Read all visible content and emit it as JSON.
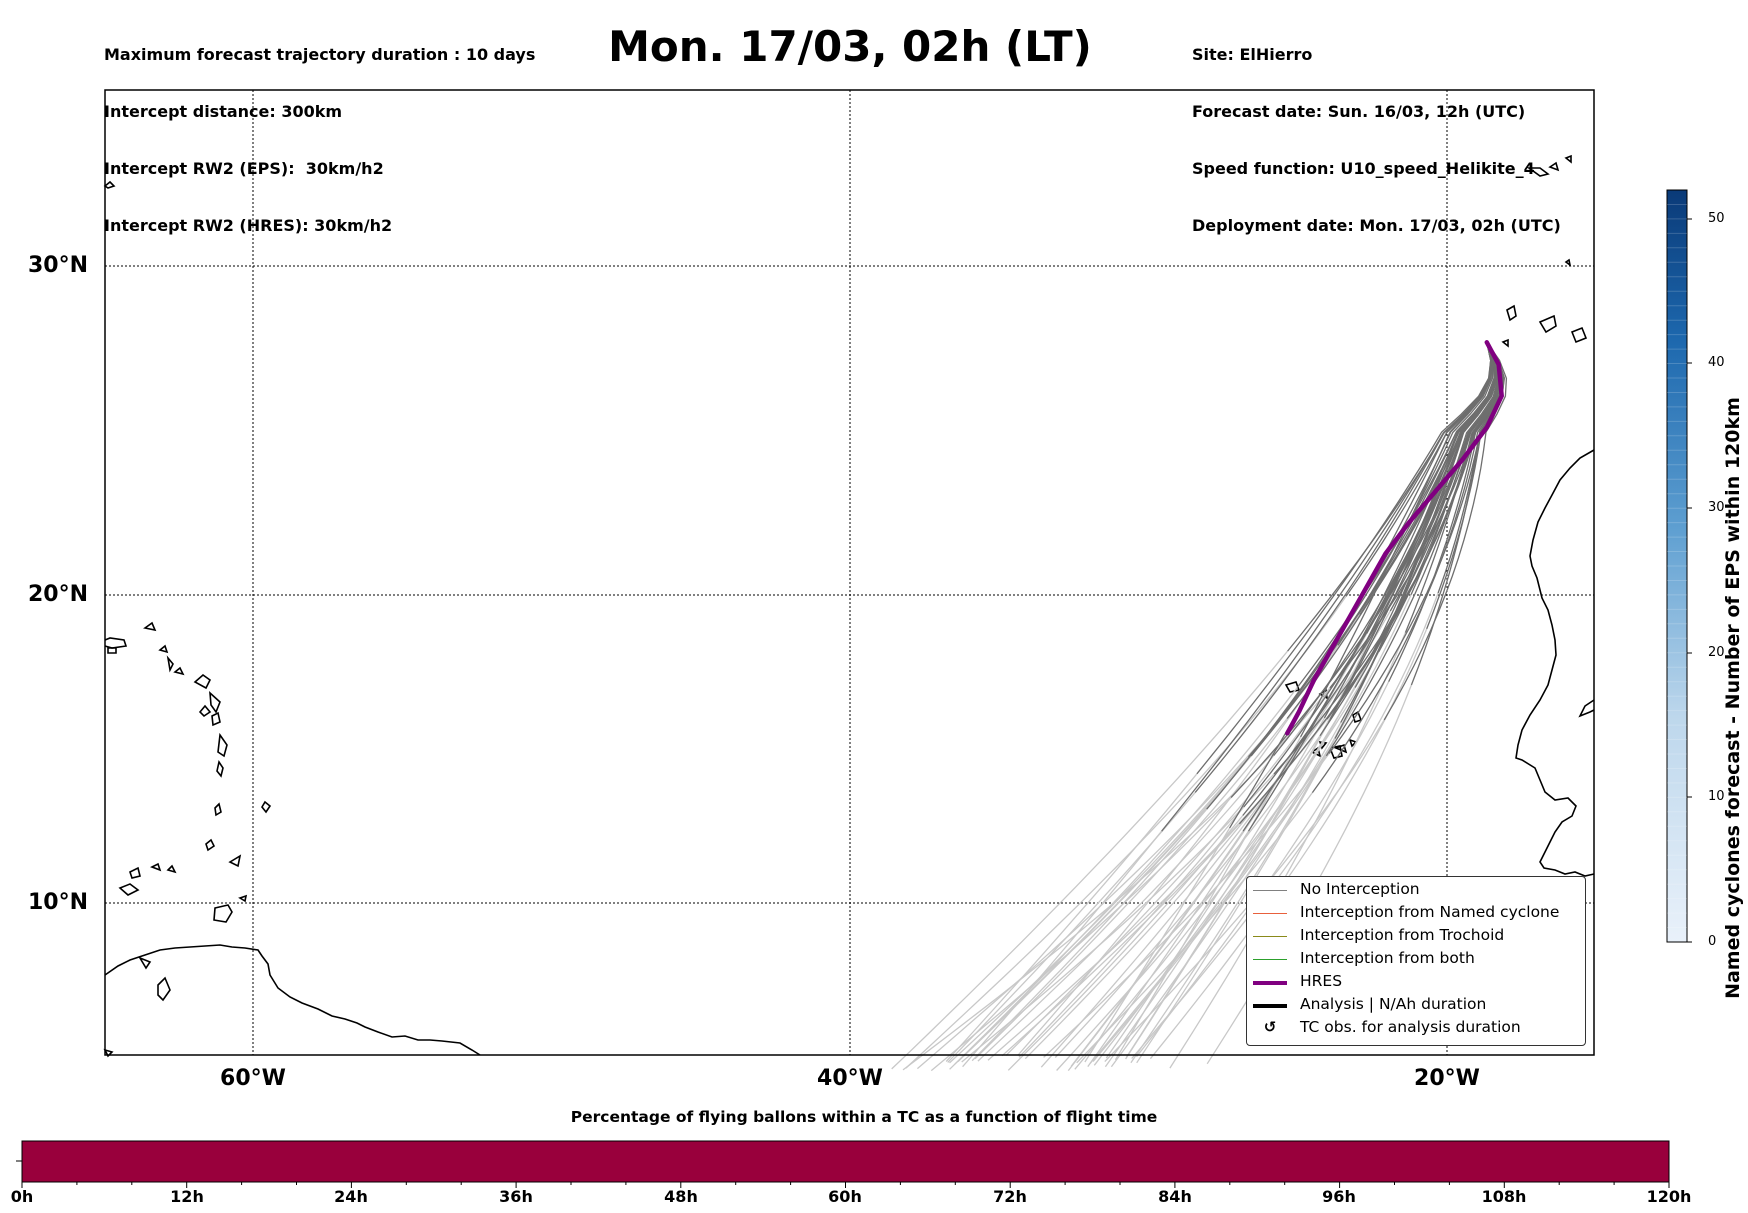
{
  "header": {
    "left_lines": [
      "Maximum forecast trajectory duration : 10 days",
      "Intercept distance: 300km",
      "Intercept RW2 (EPS):  30km/h2",
      "Intercept RW2 (HRES): 30km/h2"
    ],
    "title": "Mon. 17/03, 02h (LT)",
    "right_lines": [
      "Site: ElHierro",
      "Forecast date: Sun. 16/03, 12h (UTC)",
      "Speed function: U10_speed_Helikite_4",
      "Deployment date: Mon. 17/03, 02h (UTC)"
    ]
  },
  "map": {
    "lat_labels": [
      "30°N",
      "20°N",
      "10°N"
    ],
    "lon_labels": [
      "60°W",
      "40°W",
      "20°W"
    ],
    "lon_range": [
      -65,
      -15
    ],
    "lat_range": [
      5.1,
      35.7
    ],
    "gridlines": true
  },
  "legend": {
    "items": [
      {
        "label": "No Interception",
        "color": "#808080",
        "style": "thin-line"
      },
      {
        "label": "Interception from Named cyclone",
        "color": "#e8603c",
        "style": "thin-line"
      },
      {
        "label": "Interception from Trochoid",
        "color": "#8a8a1a",
        "style": "thin-line"
      },
      {
        "label": "Interception from both",
        "color": "#2ca02c",
        "style": "thin-line"
      },
      {
        "label": "HRES",
        "color": "#800080",
        "style": "thick-line"
      },
      {
        "label": "Analysis | N/Ah duration",
        "color": "#000000",
        "style": "thick-line"
      },
      {
        "label": "TC obs. for analysis duration",
        "color": "#000000",
        "style": "cyclone-icon"
      }
    ]
  },
  "colorbar": {
    "label": "Named cyclones forecast - Number of EPS within 120km",
    "ticks": [
      "0",
      "10",
      "20",
      "30",
      "40",
      "50"
    ],
    "min": 0,
    "max": 52,
    "color_low": "#e9f1fa",
    "color_high": "#0a3a78"
  },
  "percentage_bar": {
    "title": "Percentage of flying ballons within a TC as a function of flight time",
    "color": "#99003c",
    "hour_labels": [
      "0h",
      "12h",
      "24h",
      "36h",
      "48h",
      "60h",
      "72h",
      "84h",
      "96h",
      "108h",
      "120h"
    ]
  },
  "trajectories": {
    "origin": {
      "lon": -18.6,
      "lat": 27.7
    },
    "hres_path": [
      [
        -18.6,
        27.7
      ],
      [
        -18.2,
        27.0
      ],
      [
        -18.1,
        26.0
      ],
      [
        -18.6,
        25.0
      ],
      [
        -19.4,
        24.0
      ],
      [
        -20.3,
        23.0
      ],
      [
        -21.2,
        22.0
      ],
      [
        -22.0,
        21.0
      ],
      [
        -22.6,
        20.0
      ],
      [
        -23.2,
        19.0
      ],
      [
        -23.8,
        18.0
      ],
      [
        -24.4,
        17.0
      ],
      [
        -24.9,
        16.0
      ],
      [
        -25.3,
        15.3
      ]
    ]
  }
}
